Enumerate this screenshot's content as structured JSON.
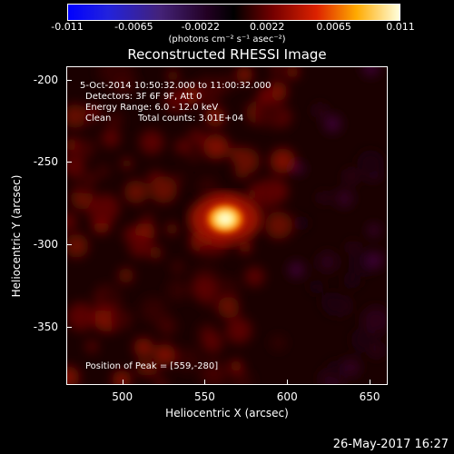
{
  "colorbar": {
    "ticks": [
      "-0.011",
      "-0.0065",
      "-0.0022",
      "0.0022",
      "0.0065",
      "0.011"
    ],
    "units": "(photons cm⁻² s⁻¹ asec⁻²)"
  },
  "title": "Reconstructed RHESSI Image",
  "info": {
    "time": "5-Oct-2014 10:50:32.000 to 11:00:32.000",
    "detectors": "Detectors: 3F 6F 9F, Att 0",
    "energy": "Energy Range: 6.0 - 12.0 keV",
    "method": "Clean",
    "counts": "Total counts: 3.01E+04",
    "peak": "Position of Peak = [559,-280]"
  },
  "axes": {
    "xlabel": "Heliocentric X (arcsec)",
    "ylabel": "Heliocentric Y (arcsec)",
    "xticks": [
      "500",
      "550",
      "600",
      "650"
    ],
    "yticks": [
      "-200",
      "-250",
      "-300",
      "-350"
    ],
    "xlim": [
      466,
      661
    ],
    "ylim": [
      -192,
      -385
    ]
  },
  "image": {
    "peak_position": [
      559,
      -280
    ]
  },
  "footer": {
    "date": "26-May-2017 16:27"
  }
}
